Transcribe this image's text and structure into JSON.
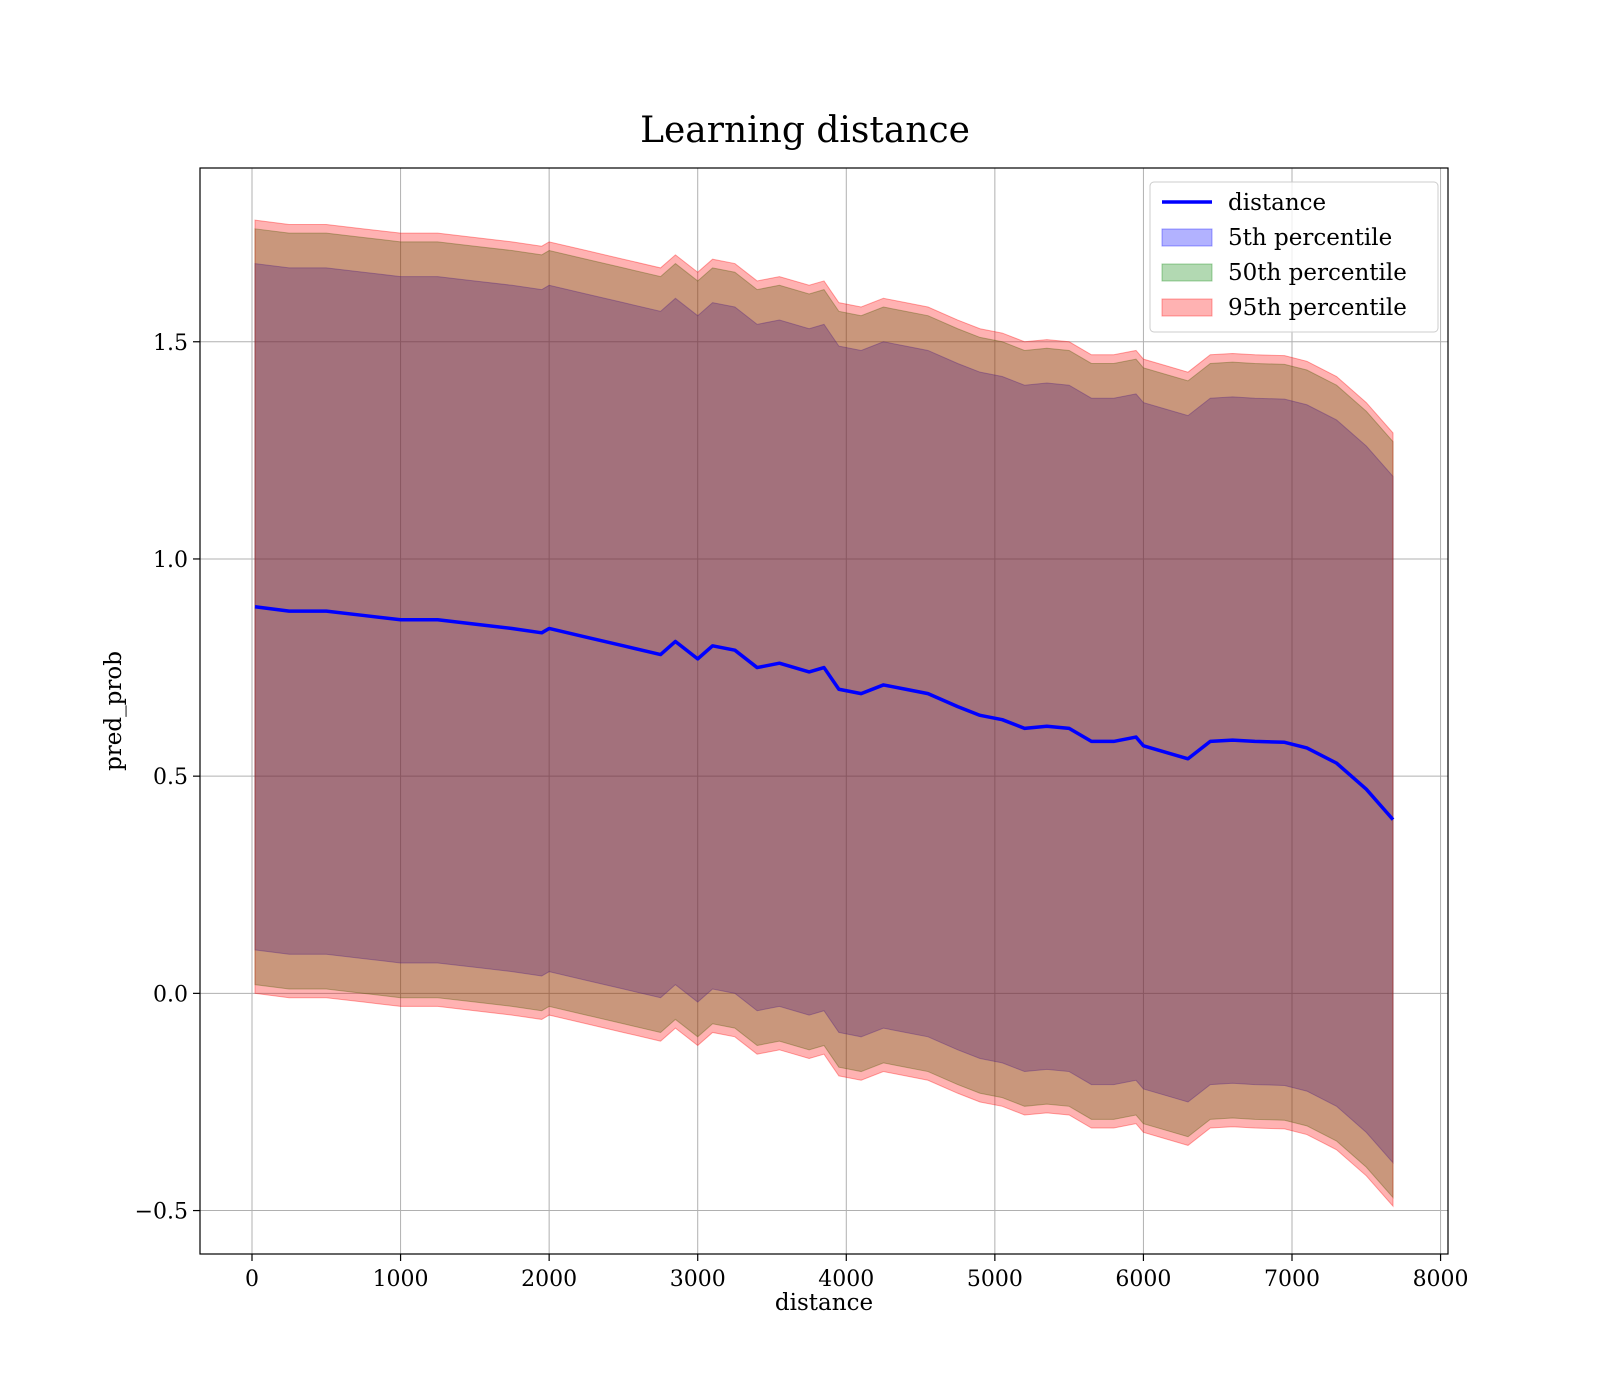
{
  "chart_data": {
    "type": "area",
    "title": "Learning distance",
    "xlabel": "distance",
    "ylabel": "pred_prob",
    "xlim": [
      -350,
      8050
    ],
    "ylim": [
      -0.6,
      1.9
    ],
    "xticks": [
      0,
      1000,
      2000,
      3000,
      4000,
      5000,
      6000,
      7000,
      8000
    ],
    "yticks": [
      -0.5,
      0.0,
      0.5,
      1.0,
      1.5
    ],
    "ytick_labels": [
      "−0.5",
      "0.0",
      "0.5",
      "1.0",
      "1.5"
    ],
    "grid": true,
    "legend_position": "upper-right",
    "x": [
      20,
      250,
      500,
      750,
      1000,
      1250,
      1500,
      1750,
      1950,
      2000,
      2250,
      2500,
      2750,
      2850,
      3000,
      3100,
      3250,
      3400,
      3550,
      3750,
      3850,
      3950,
      4100,
      4250,
      4400,
      4550,
      4750,
      4900,
      5050,
      5200,
      5350,
      5500,
      5650,
      5800,
      5950,
      6000,
      6150,
      6300,
      6450,
      6600,
      6750,
      6950,
      7100,
      7300,
      7500,
      7680
    ],
    "series": [
      {
        "name": "distance",
        "kind": "line",
        "color": "#0000ff",
        "values": [
          0.89,
          0.88,
          0.88,
          0.87,
          0.86,
          0.86,
          0.85,
          0.84,
          0.83,
          0.84,
          0.82,
          0.8,
          0.78,
          0.81,
          0.77,
          0.8,
          0.79,
          0.75,
          0.76,
          0.74,
          0.75,
          0.7,
          0.69,
          0.71,
          0.7,
          0.69,
          0.66,
          0.64,
          0.63,
          0.61,
          0.615,
          0.61,
          0.58,
          0.58,
          0.59,
          0.57,
          0.555,
          0.54,
          0.58,
          0.583,
          0.58,
          0.578,
          0.565,
          0.53,
          0.47,
          0.4
        ]
      },
      {
        "name": "5th percentile",
        "kind": "band",
        "color": "#0000ff",
        "lower": [
          0.1,
          0.09,
          0.09,
          0.08,
          0.07,
          0.07,
          0.06,
          0.05,
          0.04,
          0.05,
          0.03,
          0.01,
          -0.01,
          0.02,
          -0.02,
          0.01,
          0.0,
          -0.04,
          -0.03,
          -0.05,
          -0.04,
          -0.09,
          -0.1,
          -0.08,
          -0.09,
          -0.1,
          -0.13,
          -0.15,
          -0.16,
          -0.18,
          -0.175,
          -0.18,
          -0.21,
          -0.21,
          -0.2,
          -0.22,
          -0.235,
          -0.25,
          -0.21,
          -0.207,
          -0.21,
          -0.212,
          -0.225,
          -0.26,
          -0.32,
          -0.39
        ],
        "upper": [
          1.68,
          1.67,
          1.67,
          1.66,
          1.65,
          1.65,
          1.64,
          1.63,
          1.62,
          1.63,
          1.61,
          1.59,
          1.57,
          1.6,
          1.56,
          1.59,
          1.58,
          1.54,
          1.55,
          1.53,
          1.54,
          1.49,
          1.48,
          1.5,
          1.49,
          1.48,
          1.45,
          1.43,
          1.42,
          1.4,
          1.405,
          1.4,
          1.37,
          1.37,
          1.38,
          1.36,
          1.345,
          1.33,
          1.37,
          1.373,
          1.37,
          1.368,
          1.355,
          1.32,
          1.26,
          1.19
        ]
      },
      {
        "name": "50th percentile",
        "kind": "band",
        "color": "#008000",
        "lower": [
          0.02,
          0.01,
          0.01,
          0.0,
          -0.01,
          -0.01,
          -0.02,
          -0.03,
          -0.04,
          -0.03,
          -0.05,
          -0.07,
          -0.09,
          -0.06,
          -0.1,
          -0.07,
          -0.08,
          -0.12,
          -0.11,
          -0.13,
          -0.12,
          -0.17,
          -0.18,
          -0.16,
          -0.17,
          -0.18,
          -0.21,
          -0.23,
          -0.24,
          -0.26,
          -0.255,
          -0.26,
          -0.29,
          -0.29,
          -0.28,
          -0.3,
          -0.315,
          -0.33,
          -0.29,
          -0.287,
          -0.29,
          -0.292,
          -0.305,
          -0.34,
          -0.4,
          -0.47
        ],
        "upper": [
          1.76,
          1.75,
          1.75,
          1.74,
          1.73,
          1.73,
          1.72,
          1.71,
          1.7,
          1.71,
          1.69,
          1.67,
          1.65,
          1.68,
          1.64,
          1.67,
          1.66,
          1.62,
          1.63,
          1.61,
          1.62,
          1.57,
          1.56,
          1.58,
          1.57,
          1.56,
          1.53,
          1.51,
          1.5,
          1.48,
          1.485,
          1.48,
          1.45,
          1.45,
          1.46,
          1.44,
          1.425,
          1.41,
          1.45,
          1.453,
          1.45,
          1.448,
          1.435,
          1.4,
          1.34,
          1.27
        ]
      },
      {
        "name": "95th percentile",
        "kind": "band",
        "color": "#ff0000",
        "lower": [
          0.0,
          -0.01,
          -0.01,
          -0.02,
          -0.03,
          -0.03,
          -0.04,
          -0.05,
          -0.06,
          -0.05,
          -0.07,
          -0.09,
          -0.11,
          -0.08,
          -0.12,
          -0.09,
          -0.1,
          -0.14,
          -0.13,
          -0.15,
          -0.14,
          -0.19,
          -0.2,
          -0.18,
          -0.19,
          -0.2,
          -0.23,
          -0.25,
          -0.26,
          -0.28,
          -0.275,
          -0.28,
          -0.31,
          -0.31,
          -0.3,
          -0.32,
          -0.335,
          -0.35,
          -0.31,
          -0.307,
          -0.31,
          -0.312,
          -0.325,
          -0.36,
          -0.42,
          -0.49
        ],
        "upper": [
          1.78,
          1.77,
          1.77,
          1.76,
          1.75,
          1.75,
          1.74,
          1.73,
          1.72,
          1.73,
          1.71,
          1.69,
          1.67,
          1.7,
          1.66,
          1.69,
          1.68,
          1.64,
          1.65,
          1.63,
          1.64,
          1.59,
          1.58,
          1.6,
          1.59,
          1.58,
          1.55,
          1.53,
          1.52,
          1.5,
          1.505,
          1.5,
          1.47,
          1.47,
          1.48,
          1.46,
          1.445,
          1.43,
          1.47,
          1.473,
          1.47,
          1.468,
          1.455,
          1.42,
          1.36,
          1.29
        ]
      }
    ]
  }
}
